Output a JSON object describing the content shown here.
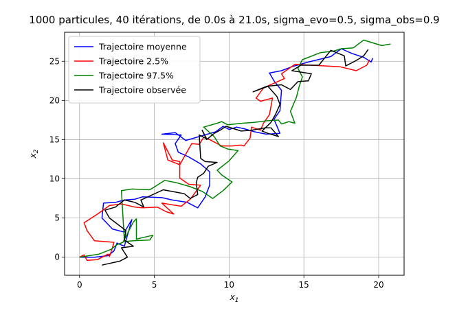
{
  "chart_data": {
    "type": "line",
    "title": "1000 particules, 40 itérations, de 0.0s à 21.0s, sigma_evo=0.5, sigma_obs=0.9",
    "xlabel_base": "x",
    "xlabel_sub": "1",
    "ylabel_base": "x",
    "ylabel_sub": "2",
    "xlim": [
      -1.0,
      21.7
    ],
    "ylim": [
      -2.3,
      28.7
    ],
    "xticks": [
      0,
      5,
      10,
      15,
      20
    ],
    "yticks": [
      0,
      5,
      10,
      15,
      20,
      25
    ],
    "grid": true,
    "legend_position": "top-left",
    "series": [
      {
        "name": "Trajectoire moyenne",
        "color": "#0000ff",
        "points": [
          [
            0,
            0
          ],
          [
            1,
            0
          ],
          [
            1.9,
            0.2
          ],
          [
            2.3,
            0.8
          ],
          [
            2.5,
            1.8
          ],
          [
            3.0,
            1.4
          ],
          [
            3.5,
            4.8
          ],
          [
            3.0,
            3.2
          ],
          [
            2.2,
            3.6
          ],
          [
            1.5,
            5.0
          ],
          [
            1.6,
            6.9
          ],
          [
            2.4,
            7.0
          ],
          [
            3.0,
            7.3
          ],
          [
            3.7,
            7.4
          ],
          [
            4.2,
            7.7
          ],
          [
            5.5,
            7.6
          ],
          [
            6.2,
            7.3
          ],
          [
            7.2,
            7.0
          ],
          [
            7.9,
            6.3
          ],
          [
            8.4,
            7.7
          ],
          [
            8.7,
            9.2
          ],
          [
            8.7,
            10.9
          ],
          [
            8.1,
            11.9
          ],
          [
            7.3,
            12.8
          ],
          [
            6.6,
            13.4
          ],
          [
            6.4,
            14.5
          ],
          [
            6.8,
            15.6
          ],
          [
            5.5,
            15.7
          ],
          [
            6.4,
            15.9
          ],
          [
            7.1,
            14.9
          ],
          [
            8.2,
            15.5
          ],
          [
            9.1,
            16.0
          ],
          [
            9.6,
            16.7
          ],
          [
            10.0,
            16.3
          ],
          [
            10.5,
            16.6
          ],
          [
            11.0,
            16.4
          ],
          [
            11.7,
            16.0
          ],
          [
            12.5,
            15.7
          ],
          [
            13.4,
            15.8
          ],
          [
            13.0,
            17.6
          ],
          [
            13.4,
            18.7
          ],
          [
            13.5,
            21.3
          ],
          [
            13.0,
            22.5
          ],
          [
            12.7,
            23.5
          ],
          [
            13.5,
            23.8
          ],
          [
            14.2,
            24.3
          ],
          [
            15.3,
            24.9
          ],
          [
            16.8,
            25.6
          ],
          [
            17.5,
            26.6
          ],
          [
            18.2,
            26.0
          ],
          [
            19.0,
            25.5
          ],
          [
            19.5,
            24.9
          ],
          [
            19.6,
            25.4
          ]
        ]
      },
      {
        "name": "Trajectoire 2.5%",
        "color": "#ff0000",
        "points": [
          [
            0,
            0
          ],
          [
            0.3,
            0.3
          ],
          [
            0.5,
            -0.4
          ],
          [
            1.2,
            -0.3
          ],
          [
            1.9,
            0.4
          ],
          [
            2.0,
            0.1
          ],
          [
            2.2,
            1.2
          ],
          [
            2.3,
            1.9
          ],
          [
            1.0,
            2.1
          ],
          [
            0.5,
            3.4
          ],
          [
            0.3,
            4.4
          ],
          [
            1.2,
            5.5
          ],
          [
            2.0,
            6.6
          ],
          [
            2.8,
            6.8
          ],
          [
            3.7,
            6.4
          ],
          [
            4.2,
            6.3
          ],
          [
            5.2,
            6.4
          ],
          [
            5.8,
            5.8
          ],
          [
            6.3,
            5.5
          ],
          [
            5.5,
            6.9
          ],
          [
            6.8,
            6.5
          ],
          [
            7.4,
            7.4
          ],
          [
            8.1,
            9.2
          ],
          [
            7.3,
            9.3
          ],
          [
            6.7,
            10.1
          ],
          [
            6.7,
            12.2
          ],
          [
            6.2,
            12.4
          ],
          [
            5.6,
            14.6
          ],
          [
            5.9,
            12.4
          ],
          [
            6.7,
            11.8
          ],
          [
            7.5,
            14.5
          ],
          [
            8.0,
            14.4
          ],
          [
            8.3,
            15.3
          ],
          [
            8.7,
            15.0
          ],
          [
            9.5,
            14.2
          ],
          [
            10.2,
            14.2
          ],
          [
            10.8,
            14.3
          ],
          [
            11.0,
            14.2
          ],
          [
            11.4,
            15.2
          ],
          [
            11.5,
            16.6
          ],
          [
            12.1,
            16.2
          ],
          [
            12.3,
            17.1
          ],
          [
            12.7,
            18.2
          ],
          [
            12.9,
            20.3
          ],
          [
            12.1,
            19.9
          ],
          [
            11.8,
            20.3
          ],
          [
            12.3,
            21.6
          ],
          [
            13.7,
            22.8
          ],
          [
            13.5,
            23.4
          ],
          [
            14.4,
            24.6
          ],
          [
            15.5,
            24.5
          ],
          [
            17.4,
            24.3
          ],
          [
            18.5,
            23.8
          ],
          [
            19.2,
            24.5
          ],
          [
            19.4,
            25.2
          ]
        ]
      },
      {
        "name": "Trajectoire 97.5%",
        "color": "#008000",
        "points": [
          [
            0,
            0
          ],
          [
            1.3,
            0.4
          ],
          [
            2.1,
            1.0
          ],
          [
            2.5,
            1.6
          ],
          [
            2.9,
            1.9
          ],
          [
            3.6,
            4.5
          ],
          [
            3.8,
            4.9
          ],
          [
            3.8,
            2.3
          ],
          [
            4.2,
            2.5
          ],
          [
            4.9,
            2.8
          ],
          [
            4.7,
            2.2
          ],
          [
            3.6,
            2.1
          ],
          [
            3.0,
            2.0
          ],
          [
            2.8,
            8.5
          ],
          [
            3.5,
            8.7
          ],
          [
            4.7,
            8.6
          ],
          [
            5.7,
            9.8
          ],
          [
            6.5,
            9.5
          ],
          [
            7.4,
            9.0
          ],
          [
            8.2,
            8.4
          ],
          [
            8.9,
            7.5
          ],
          [
            9.6,
            8.5
          ],
          [
            10.2,
            9.6
          ],
          [
            9.5,
            10.5
          ],
          [
            9.2,
            11.1
          ],
          [
            10.0,
            12.3
          ],
          [
            10.6,
            13.6
          ],
          [
            9.9,
            13.8
          ],
          [
            9.4,
            14.2
          ],
          [
            9.0,
            15.4
          ],
          [
            8.3,
            16.6
          ],
          [
            9.2,
            17.1
          ],
          [
            9.5,
            17.3
          ],
          [
            9.9,
            16.9
          ],
          [
            10.9,
            17.1
          ],
          [
            11.7,
            17.2
          ],
          [
            12.5,
            17.4
          ],
          [
            13.3,
            17.5
          ],
          [
            13.5,
            17.0
          ],
          [
            14.0,
            17.3
          ],
          [
            14.4,
            17.1
          ],
          [
            14.1,
            18.6
          ],
          [
            14.5,
            20.4
          ],
          [
            14.7,
            21.9
          ],
          [
            14.9,
            23.0
          ],
          [
            14.6,
            24.1
          ],
          [
            14.9,
            25.2
          ],
          [
            16.1,
            26.1
          ],
          [
            17.0,
            26.3
          ],
          [
            17.5,
            26.6
          ],
          [
            18.3,
            26.7
          ],
          [
            19.0,
            27.7
          ],
          [
            20.2,
            27.0
          ],
          [
            20.8,
            27.2
          ]
        ]
      },
      {
        "name": "Trajectoire observée",
        "color": "#000000",
        "points": [
          [
            1.5,
            -1.0
          ],
          [
            2.7,
            -0.5
          ],
          [
            3.2,
            0.0
          ],
          [
            2.8,
            1.2
          ],
          [
            3.6,
            1.4
          ],
          [
            3.0,
            2.2
          ],
          [
            3.1,
            3.4
          ],
          [
            2.0,
            5.0
          ],
          [
            1.7,
            6.0
          ],
          [
            2.4,
            6.4
          ],
          [
            3.0,
            7.3
          ],
          [
            3.7,
            7.0
          ],
          [
            4.3,
            6.4
          ],
          [
            4.1,
            7.3
          ],
          [
            5.6,
            8.6
          ],
          [
            7.0,
            8.1
          ],
          [
            7.4,
            7.5
          ],
          [
            7.9,
            8.0
          ],
          [
            7.8,
            9.5
          ],
          [
            7.9,
            10.2
          ],
          [
            8.3,
            10.7
          ],
          [
            8.6,
            11.6
          ],
          [
            9.2,
            12.1
          ],
          [
            8.4,
            12.2
          ],
          [
            8.1,
            12.6
          ],
          [
            8.0,
            15.6
          ],
          [
            8.5,
            15.1
          ],
          [
            8.2,
            16.2
          ],
          [
            8.5,
            15.0
          ],
          [
            9.0,
            15.8
          ],
          [
            9.4,
            16.2
          ],
          [
            9.8,
            16.7
          ],
          [
            10.8,
            16.1
          ],
          [
            11.5,
            16.2
          ],
          [
            12.4,
            16.5
          ],
          [
            12.8,
            16.5
          ],
          [
            13.3,
            15.4
          ],
          [
            12.6,
            15.8
          ],
          [
            12.2,
            16.1
          ],
          [
            12.8,
            17.2
          ],
          [
            13.1,
            18.2
          ],
          [
            13.4,
            19.5
          ],
          [
            13.2,
            20.5
          ],
          [
            12.6,
            21.8
          ],
          [
            11.6,
            21.1
          ],
          [
            12.5,
            21.8
          ],
          [
            13.5,
            22.0
          ],
          [
            14.1,
            21.4
          ],
          [
            14.6,
            22.4
          ],
          [
            15.3,
            22.5
          ],
          [
            15.5,
            23.4
          ],
          [
            14.2,
            23.8
          ],
          [
            14.8,
            24.5
          ],
          [
            16.0,
            24.5
          ],
          [
            16.8,
            26.4
          ],
          [
            17.7,
            25.7
          ],
          [
            17.8,
            24.4
          ],
          [
            18.5,
            25.1
          ],
          [
            19.0,
            25.7
          ],
          [
            19.3,
            26.5
          ]
        ]
      }
    ]
  }
}
